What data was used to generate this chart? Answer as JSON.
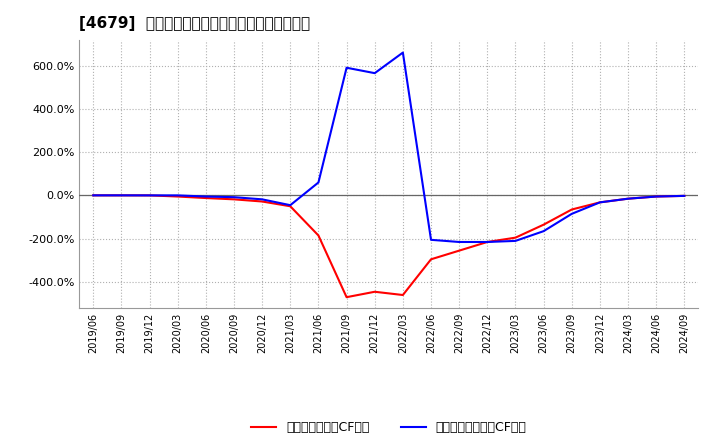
{
  "title": "[4679]  有利子負債キャッシュフロー比率の推移",
  "ylim": [
    -520,
    720
  ],
  "yticks": [
    -400,
    -200,
    0,
    200,
    400,
    600
  ],
  "ytick_labels": [
    "-400.0%",
    "-200.0%",
    "0.0%",
    "200.0%",
    "400.0%",
    "600.0%"
  ],
  "background_color": "#ffffff",
  "plot_bg_color": "#ffffff",
  "grid_color": "#b0b0b0",
  "legend_labels": [
    "有利子負債営業CF比率",
    "有利子負債フリーCF比率"
  ],
  "line_colors": [
    "#ff0000",
    "#0000ff"
  ],
  "dates": [
    "2019/06",
    "2019/09",
    "2019/12",
    "2020/03",
    "2020/06",
    "2020/09",
    "2020/12",
    "2021/03",
    "2021/06",
    "2021/09",
    "2021/12",
    "2022/03",
    "2022/06",
    "2022/09",
    "2022/12",
    "2023/03",
    "2023/06",
    "2023/09",
    "2023/12",
    "2024/03",
    "2024/06",
    "2024/09"
  ],
  "series_operating": [
    0.5,
    0.5,
    0.3,
    -5.0,
    -12.0,
    -18.0,
    -28.0,
    -50.0,
    -185.0,
    -470.0,
    -445.0,
    -460.0,
    -295.0,
    -255.0,
    -215.0,
    -195.0,
    -135.0,
    -65.0,
    -32.0,
    -15.0,
    -5.0,
    -2.0
  ],
  "series_free": [
    0.5,
    0.5,
    0.3,
    0.3,
    -5.0,
    -8.0,
    -18.0,
    -45.0,
    60.0,
    590.0,
    565.0,
    660.0,
    -205.0,
    -215.0,
    -215.0,
    -210.0,
    -165.0,
    -85.0,
    -32.0,
    -15.0,
    -5.0,
    -2.0
  ]
}
